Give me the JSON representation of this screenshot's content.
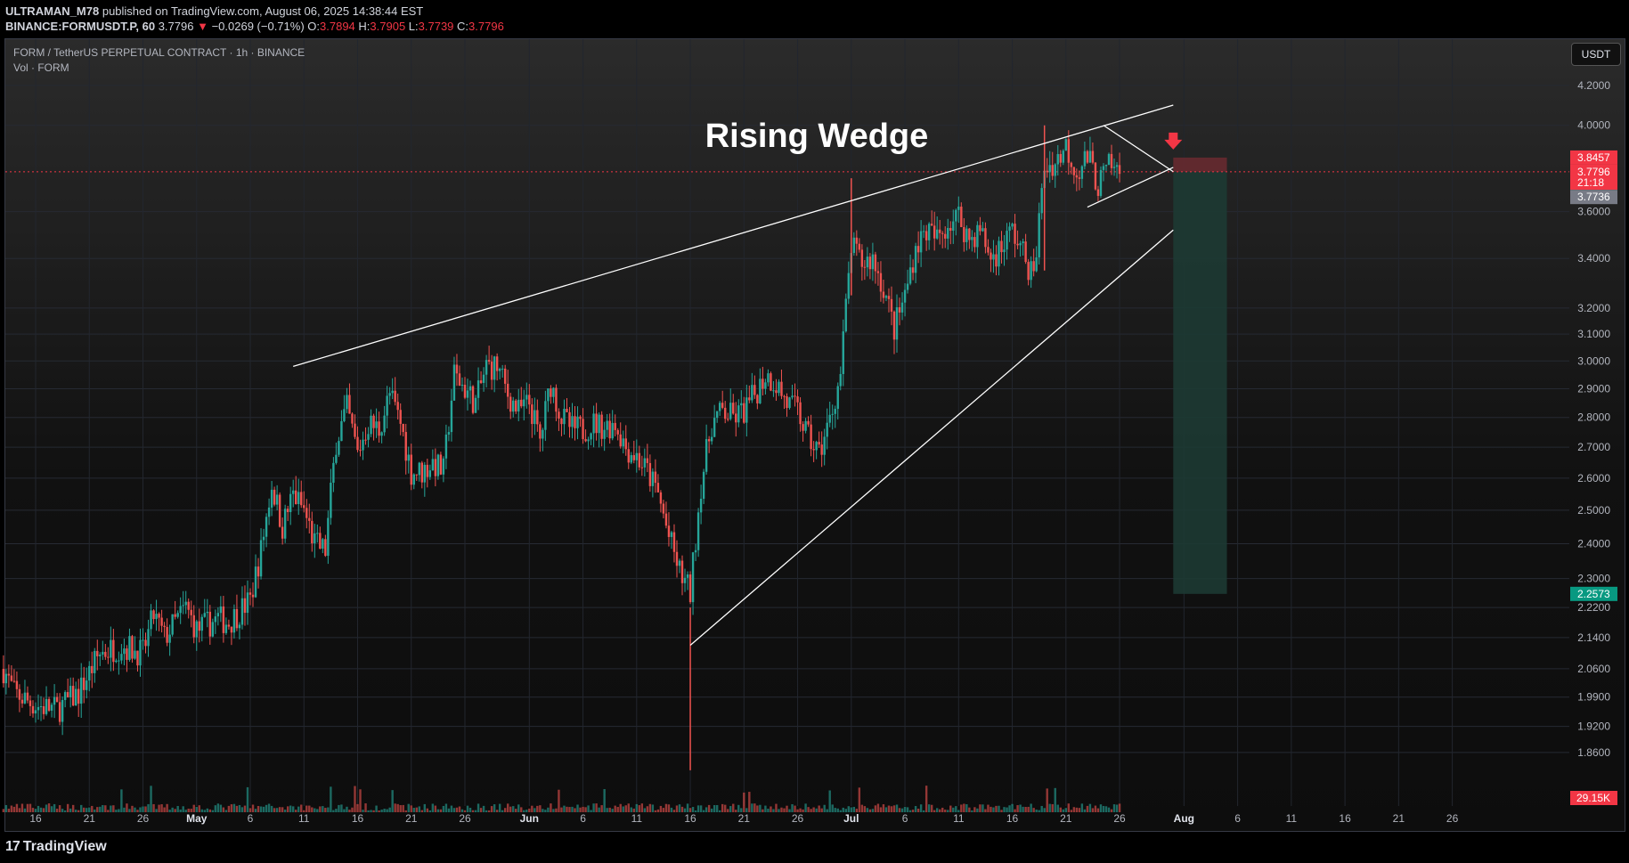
{
  "header": {
    "author": "ULTRAMAN_M78",
    "published": "published on TradingView.com, August 06, 2025 14:38:44 EST",
    "symbol": "BINANCE:FORMUSDT.P, 60",
    "last": "3.7796",
    "change_arrow": "▼",
    "change": "−0.0269 (−0.71%)",
    "o_label": "O:",
    "o": "3.7894",
    "h_label": "H:",
    "h": "3.7905",
    "l_label": "L:",
    "l": "3.7739",
    "c_label": "C:",
    "c": "3.7796"
  },
  "legend": {
    "title": "FORM / TetherUS PERPETUAL CONTRACT · 1h · BINANCE",
    "volume": "Vol · FORM"
  },
  "currency_button": "USDT",
  "footer": {
    "logo_mark": "17",
    "logo_text": "TradingView"
  },
  "colors": {
    "up": "#26a69a",
    "down": "#ef5350",
    "bg": "#161616",
    "line": "#ffffff",
    "red_tag": "#f23645",
    "green_zone": "#1d3a33"
  },
  "chart_data": {
    "type": "candlestick",
    "title": "Rising Wedge",
    "scale": "log",
    "ylim": [
      1.8,
      4.25
    ],
    "y_ticks": [
      "4.2000",
      "4.0000",
      "3.6000",
      "3.4000",
      "3.2000",
      "3.1000",
      "3.0000",
      "2.9000",
      "2.8000",
      "2.7000",
      "2.6000",
      "2.5000",
      "2.4000",
      "2.3000",
      "2.2200",
      "2.1400",
      "2.0600",
      "1.9900",
      "1.9200",
      "1.8600"
    ],
    "x_ticks": [
      {
        "label": "16",
        "day": 0
      },
      {
        "label": "21",
        "day": 5
      },
      {
        "label": "26",
        "day": 10
      },
      {
        "label": "May",
        "day": 15,
        "bold": true
      },
      {
        "label": "6",
        "day": 20
      },
      {
        "label": "11",
        "day": 25
      },
      {
        "label": "16",
        "day": 30
      },
      {
        "label": "21",
        "day": 35
      },
      {
        "label": "26",
        "day": 40
      },
      {
        "label": "Jun",
        "day": 46,
        "bold": true
      },
      {
        "label": "6",
        "day": 51
      },
      {
        "label": "11",
        "day": 56
      },
      {
        "label": "16",
        "day": 61
      },
      {
        "label": "21",
        "day": 66
      },
      {
        "label": "26",
        "day": 71
      },
      {
        "label": "Jul",
        "day": 76,
        "bold": true
      },
      {
        "label": "6",
        "day": 81
      },
      {
        "label": "11",
        "day": 86
      },
      {
        "label": "16",
        "day": 91
      },
      {
        "label": "21",
        "day": 96
      },
      {
        "label": "26",
        "day": 101
      },
      {
        "label": "Aug",
        "day": 107,
        "bold": true
      },
      {
        "label": "6",
        "day": 112
      },
      {
        "label": "11",
        "day": 117
      },
      {
        "label": "16",
        "day": 122
      },
      {
        "label": "21",
        "day": 127
      },
      {
        "label": "26",
        "day": 132
      }
    ],
    "price_path": [
      [
        -3,
        2.06
      ],
      [
        -2,
        2.0
      ],
      [
        0,
        1.97
      ],
      [
        2,
        1.96
      ],
      [
        4,
        2.0
      ],
      [
        6,
        2.1
      ],
      [
        8,
        2.12
      ],
      [
        10,
        2.1
      ],
      [
        11,
        2.2
      ],
      [
        12,
        2.14
      ],
      [
        13,
        2.18
      ],
      [
        14,
        2.22
      ],
      [
        15,
        2.16
      ],
      [
        17,
        2.19
      ],
      [
        18,
        2.18
      ],
      [
        20,
        2.24
      ],
      [
        21,
        2.38
      ],
      [
        22,
        2.58
      ],
      [
        23,
        2.45
      ],
      [
        24,
        2.55
      ],
      [
        25,
        2.5
      ],
      [
        26,
        2.4
      ],
      [
        27,
        2.38
      ],
      [
        28,
        2.72
      ],
      [
        29,
        2.83
      ],
      [
        30,
        2.68
      ],
      [
        31,
        2.78
      ],
      [
        32,
        2.76
      ],
      [
        33,
        2.88
      ],
      [
        34,
        2.78
      ],
      [
        35,
        2.62
      ],
      [
        36,
        2.62
      ],
      [
        37,
        2.65
      ],
      [
        38,
        2.62
      ],
      [
        39,
        2.95
      ],
      [
        40,
        2.9
      ],
      [
        41,
        2.85
      ],
      [
        42,
        2.98
      ],
      [
        43,
        2.98
      ],
      [
        44,
        2.88
      ],
      [
        45,
        2.82
      ],
      [
        46,
        2.85
      ],
      [
        47,
        2.72
      ],
      [
        48,
        2.92
      ],
      [
        49,
        2.8
      ],
      [
        50,
        2.76
      ],
      [
        51,
        2.76
      ],
      [
        52,
        2.78
      ],
      [
        53,
        2.77
      ],
      [
        54,
        2.78
      ],
      [
        55,
        2.7
      ],
      [
        56,
        2.67
      ],
      [
        57,
        2.62
      ],
      [
        58,
        2.55
      ],
      [
        59,
        2.42
      ],
      [
        60,
        2.32
      ],
      [
        61,
        2.26
      ],
      [
        62,
        2.58
      ],
      [
        63,
        2.78
      ],
      [
        64,
        2.82
      ],
      [
        65,
        2.8
      ],
      [
        66,
        2.82
      ],
      [
        67,
        2.88
      ],
      [
        68,
        2.95
      ],
      [
        69,
        2.92
      ],
      [
        70,
        2.85
      ],
      [
        71,
        2.82
      ],
      [
        72,
        2.73
      ],
      [
        73,
        2.68
      ],
      [
        74,
        2.79
      ],
      [
        75,
        2.95
      ],
      [
        76,
        3.45
      ],
      [
        77,
        3.38
      ],
      [
        78,
        3.4
      ],
      [
        79,
        3.28
      ],
      [
        80,
        3.12
      ],
      [
        81,
        3.25
      ],
      [
        82,
        3.45
      ],
      [
        83,
        3.52
      ],
      [
        84,
        3.48
      ],
      [
        85,
        3.55
      ],
      [
        86,
        3.58
      ],
      [
        87,
        3.48
      ],
      [
        88,
        3.52
      ],
      [
        89,
        3.4
      ],
      [
        90,
        3.45
      ],
      [
        91,
        3.52
      ],
      [
        92,
        3.42
      ],
      [
        93,
        3.32
      ],
      [
        94,
        3.8
      ],
      [
        95,
        3.82
      ],
      [
        96,
        3.9
      ],
      [
        97,
        3.78
      ],
      [
        98,
        3.85
      ],
      [
        99,
        3.72
      ],
      [
        100,
        3.8
      ],
      [
        101,
        3.78
      ]
    ],
    "volume_axis_tag": "29.15K",
    "price_tags": [
      {
        "label": "3.8457",
        "price": 3.8457,
        "type": "stop"
      },
      {
        "label": "3.7796",
        "price": 3.7796,
        "type": "last"
      },
      {
        "label": "21:18",
        "price": 3.73,
        "type": "countdown"
      },
      {
        "label": "3.7736",
        "price": 3.665,
        "type": "mark"
      },
      {
        "label": "2.2573",
        "price": 2.2573,
        "type": "target"
      }
    ],
    "annotations": {
      "upper_line": [
        [
          24,
          2.98
        ],
        [
          106,
          4.1
        ]
      ],
      "lower_line": [
        [
          61,
          2.12
        ],
        [
          106,
          3.52
        ]
      ],
      "triangle_top": [
        [
          99.5,
          4.0
        ],
        [
          106,
          3.78
        ]
      ],
      "triangle_bottom": [
        [
          98,
          3.62
        ],
        [
          106,
          3.8
        ]
      ],
      "short_position": {
        "day_start": 106,
        "day_end": 111,
        "entry": 3.7796,
        "stop": 3.8457,
        "target": 2.2573
      },
      "arrow_day": 106
    }
  }
}
